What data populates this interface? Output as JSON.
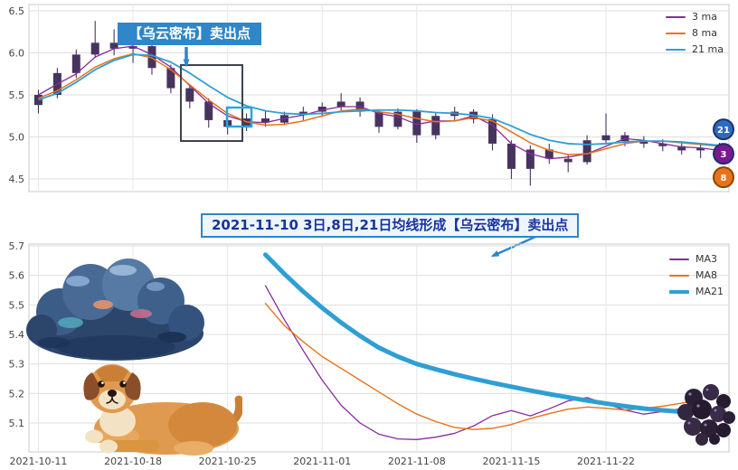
{
  "colors": {
    "ma3": "#862d9c",
    "ma8": "#e8731a",
    "ma21": "#2e9fd4",
    "candle": "#46345e",
    "annotation_blue": "#2f86c8",
    "grid": "#dedede",
    "border": "#c8c8c8",
    "axis_text": "#444444"
  },
  "icons": {
    "cloud": "dark-cloud-illustration",
    "dog": "dog-illustration",
    "berries": "berry-cluster-illustration"
  },
  "chart_data": [
    {
      "id": "top-candlestick-chart",
      "type": "candlestick+line",
      "title": "",
      "ylim": [
        4.35,
        6.57
      ],
      "ytick_values": [
        6.5,
        6.0,
        5.5,
        5.0,
        4.5
      ],
      "yticks": [
        "6.5",
        "6.0",
        "5.5",
        "5.0",
        "4.5"
      ],
      "xtick_days": [
        0,
        5,
        10,
        15,
        20,
        25,
        30
      ],
      "xtick_labels_visible": false,
      "grid": true,
      "legend_position": "upper right",
      "legend": [
        {
          "label": "3 ma",
          "color": "#862d9c",
          "thickness": 2
        },
        {
          "label": "8 ma",
          "color": "#e8731a",
          "thickness": 2
        },
        {
          "label": "21 ma",
          "color": "#2e9fd4",
          "thickness": 2
        }
      ],
      "annotation": {
        "text": "【乌云密布】卖出点"
      },
      "badges": [
        {
          "label": "21",
          "value": 5.09,
          "color": "#2d6bbf",
          "ring": "#1d2f6e"
        },
        {
          "label": "3",
          "value": 4.8,
          "color": "#7c1691",
          "ring": "#1d2f6e"
        },
        {
          "label": "8",
          "value": 4.52,
          "color": "#e8731a",
          "ring": "#8a4500"
        }
      ],
      "candles": [
        [
          "2021-10-11",
          5.38,
          5.56,
          5.28,
          5.5
        ],
        [
          "2021-10-12",
          5.5,
          5.82,
          5.46,
          5.76
        ],
        [
          "2021-10-13",
          5.76,
          6.04,
          5.7,
          5.98
        ],
        [
          "2021-10-14",
          5.98,
          6.38,
          5.94,
          6.12
        ],
        [
          "2021-10-15",
          6.12,
          6.28,
          5.97,
          6.05
        ],
        [
          "2021-10-18",
          6.05,
          6.3,
          5.88,
          6.08
        ],
        [
          "2021-10-19",
          6.08,
          6.12,
          5.74,
          5.82
        ],
        [
          "2021-10-20",
          5.82,
          5.86,
          5.52,
          5.58
        ],
        [
          "2021-10-21",
          5.58,
          5.63,
          5.34,
          5.42
        ],
        [
          "2021-10-22",
          5.42,
          5.46,
          5.11,
          5.2
        ],
        [
          "2021-10-25",
          5.2,
          5.26,
          5.03,
          5.12
        ],
        [
          "2021-10-26",
          5.12,
          5.28,
          5.07,
          5.22
        ],
        [
          "2021-10-27",
          5.22,
          5.31,
          5.12,
          5.17
        ],
        [
          "2021-10-28",
          5.17,
          5.3,
          5.14,
          5.26
        ],
        [
          "2021-10-29",
          5.26,
          5.36,
          5.2,
          5.3
        ],
        [
          "2021-11-01",
          5.3,
          5.41,
          5.24,
          5.36
        ],
        [
          "2021-11-02",
          5.36,
          5.52,
          5.3,
          5.42
        ],
        [
          "2021-11-03",
          5.42,
          5.47,
          5.24,
          5.3
        ],
        [
          "2021-11-04",
          5.3,
          5.33,
          5.05,
          5.12
        ],
        [
          "2021-11-05",
          5.12,
          5.34,
          5.09,
          5.3
        ],
        [
          "2021-11-08",
          5.3,
          5.33,
          4.93,
          5.02
        ],
        [
          "2021-11-09",
          5.02,
          5.29,
          4.97,
          5.25
        ],
        [
          "2021-11-10",
          5.25,
          5.36,
          5.19,
          5.3
        ],
        [
          "2021-11-11",
          5.3,
          5.33,
          5.16,
          5.21
        ],
        [
          "2021-11-12",
          5.21,
          5.27,
          4.84,
          4.92
        ],
        [
          "2021-11-15",
          4.92,
          4.96,
          4.5,
          4.62
        ],
        [
          "2021-11-16",
          4.62,
          4.9,
          4.42,
          4.85
        ],
        [
          "2021-11-17",
          4.85,
          4.92,
          4.68,
          4.74
        ],
        [
          "2021-11-18",
          4.74,
          4.8,
          4.58,
          4.7
        ],
        [
          "2021-11-19",
          4.7,
          5.02,
          4.67,
          4.96
        ],
        [
          "2021-11-22",
          4.96,
          5.28,
          4.91,
          5.02
        ],
        [
          "2021-11-23",
          5.02,
          5.06,
          4.89,
          4.95
        ],
        [
          "2021-11-24",
          4.95,
          5.01,
          4.87,
          4.92
        ],
        [
          "2021-11-25",
          4.92,
          4.97,
          4.83,
          4.89
        ],
        [
          "2021-11-26",
          4.89,
          4.94,
          4.79,
          4.84
        ],
        [
          "2021-11-29",
          4.84,
          4.91,
          4.75,
          4.87
        ],
        [
          "2021-11-30",
          4.87,
          4.93,
          4.77,
          4.81
        ]
      ],
      "series": [
        {
          "name": "3 ma",
          "color": "#862d9c",
          "width": 1.3,
          "values": [
            5.5,
            5.63,
            5.75,
            5.95,
            6.05,
            6.08,
            5.98,
            5.83,
            5.61,
            5.4,
            5.25,
            5.18,
            5.17,
            5.22,
            5.26,
            5.32,
            5.36,
            5.36,
            5.28,
            5.24,
            5.15,
            5.19,
            5.19,
            5.25,
            5.14,
            4.92,
            4.8,
            4.74,
            4.76,
            4.8,
            4.89,
            4.98,
            4.96,
            4.92,
            4.88,
            4.87,
            4.84
          ]
        },
        {
          "name": "8 ma",
          "color": "#e8731a",
          "width": 1.5,
          "values": [
            5.46,
            5.55,
            5.68,
            5.83,
            5.93,
            5.99,
            5.94,
            5.8,
            5.62,
            5.44,
            5.28,
            5.18,
            5.14,
            5.15,
            5.19,
            5.25,
            5.31,
            5.33,
            5.3,
            5.27,
            5.22,
            5.18,
            5.19,
            5.23,
            5.19,
            5.06,
            4.93,
            4.84,
            4.79,
            4.8,
            4.86,
            4.92,
            4.95,
            4.95,
            4.93,
            4.91,
            4.89
          ]
        },
        {
          "name": "21 ma",
          "color": "#2e9fd4",
          "width": 1.8,
          "values": [
            5.44,
            5.52,
            5.65,
            5.8,
            5.91,
            5.98,
            5.97,
            5.89,
            5.76,
            5.61,
            5.47,
            5.37,
            5.31,
            5.28,
            5.27,
            5.28,
            5.3,
            5.31,
            5.32,
            5.32,
            5.31,
            5.29,
            5.28,
            5.26,
            5.22,
            5.13,
            5.03,
            4.96,
            4.92,
            4.91,
            4.92,
            4.94,
            4.95,
            4.95,
            4.94,
            4.92,
            4.9
          ]
        }
      ]
    },
    {
      "id": "bottom-ma-zoom-chart",
      "type": "line",
      "title": "",
      "ylim": [
        5.0,
        5.71
      ],
      "ytick_values": [
        5.7,
        5.6,
        5.5,
        5.4,
        5.3,
        5.2,
        5.1
      ],
      "yticks": [
        "5.7",
        "5.6",
        "5.5",
        "5.4",
        "5.3",
        "5.2",
        "5.1"
      ],
      "xtick_days": [
        0,
        5,
        10,
        15,
        20,
        25,
        30
      ],
      "xtick_labels": [
        "2021-10-11",
        "2021-10-18",
        "2021-10-25",
        "2021-11-01",
        "2021-11-08",
        "2021-11-15",
        "2021-11-22"
      ],
      "grid": true,
      "legend_position": "upper right",
      "legend": [
        {
          "label": "MA3",
          "color": "#862d9c",
          "thickness": 2
        },
        {
          "label": "MA8",
          "color": "#e8731a",
          "thickness": 2
        },
        {
          "label": "MA21",
          "color": "#2e9fd4",
          "thickness": 4
        }
      ],
      "annotation": {
        "text": "2021-11-10 3日,8日,21日均线形成【乌云密布】卖出点"
      },
      "series": [
        {
          "name": "MA3",
          "color": "#862d9c",
          "width": 1.3,
          "start_day": 12,
          "values": [
            5.565,
            5.45,
            5.345,
            5.245,
            5.16,
            5.1,
            5.062,
            5.046,
            5.044,
            5.052,
            5.065,
            5.09,
            5.125,
            5.142,
            5.124,
            5.148,
            5.175,
            5.186,
            5.165,
            5.144,
            5.13,
            5.139,
            5.149,
            5.158
          ]
        },
        {
          "name": "MA8",
          "color": "#e8731a",
          "width": 1.4,
          "start_day": 12,
          "values": [
            5.505,
            5.43,
            5.375,
            5.325,
            5.285,
            5.245,
            5.205,
            5.165,
            5.13,
            5.105,
            5.085,
            5.078,
            5.082,
            5.095,
            5.115,
            5.132,
            5.147,
            5.154,
            5.15,
            5.144,
            5.149,
            5.157,
            5.167,
            5.178
          ]
        },
        {
          "name": "MA21",
          "color": "#2e9fd4",
          "width": 5,
          "start_day": 12,
          "values": [
            5.67,
            5.605,
            5.545,
            5.49,
            5.44,
            5.395,
            5.355,
            5.325,
            5.3,
            5.282,
            5.265,
            5.25,
            5.236,
            5.223,
            5.21,
            5.198,
            5.187,
            5.176,
            5.166,
            5.157,
            5.149,
            5.143,
            5.138,
            5.133
          ]
        }
      ]
    }
  ]
}
